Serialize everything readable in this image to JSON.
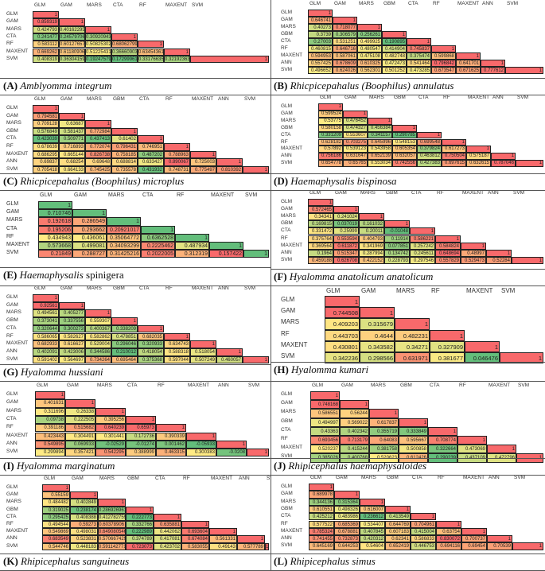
{
  "chart_data": [
    {
      "type": "heatmap",
      "panel": "A",
      "title": "Amblyomma integrum",
      "title_suffix": "",
      "labels": [
        "GLM",
        "GAM",
        "MARS",
        "CTA",
        "RF",
        "MAXENT",
        "SVM"
      ],
      "scale": "red-high",
      "values": [
        [
          "1"
        ],
        [
          "0.859319",
          "1"
        ],
        [
          "0.424793",
          "0.401622952",
          "1"
        ],
        [
          "0.241477",
          "0.245797067",
          "0.309209437",
          "1"
        ],
        [
          "0.583112",
          "0.601276579",
          "0.508253024",
          "0.680627991",
          "1"
        ],
        [
          "0.669262",
          "0.611809062",
          "0.512254319",
          "0.366609031",
          "0.634543617",
          "1"
        ],
        [
          "0.408319",
          "0.363041597",
          "0.192475794",
          "0.172999613",
          "0.331766358",
          "0.32192363",
          "1"
        ]
      ]
    },
    {
      "type": "heatmap",
      "panel": "B",
      "title": "Rhicpicepahalus (Boophilus) annulatus",
      "title_suffix": "",
      "labels": [
        "GLM",
        "GAM",
        "MARS",
        "GBM",
        "CTA",
        "RF",
        "MAXENT",
        "ANN",
        "SVM"
      ],
      "scale": "red-high",
      "values": [
        [
          "1"
        ],
        [
          "0.646741",
          "1"
        ],
        [
          "0.40273",
          "0.718077",
          "1"
        ],
        [
          "0.3739",
          "0.306579",
          "0.256261",
          "1"
        ],
        [
          "0.27003",
          "0.531251",
          "0.499925",
          "0.190895",
          "1"
        ],
        [
          "0.460815",
          "0.646716",
          "0.480547",
          "0.414904",
          "0.745837",
          "1"
        ],
        [
          "0.594953",
          "0.587061",
          "0.475108",
          "0.482748",
          "0.375474",
          "0.599868",
          "1"
        ],
        [
          "0.557425",
          "0.678609",
          "0.610325",
          "0.472473",
          "0.541464",
          "0.796842",
          "0.641701",
          "1"
        ],
        [
          "0.496652",
          "0.624026",
          "0.562301",
          "0.501252",
          "0.473285",
          "0.673547",
          "0.671625",
          "0.777612",
          "1"
        ]
      ]
    },
    {
      "type": "heatmap",
      "panel": "C",
      "title": "Rhicpicepahalus (Boophilus) microplus",
      "title_suffix": "",
      "labels": [
        "GLM",
        "GAM",
        "MARS",
        "GBM",
        "CTA",
        "RF",
        "MAXENT",
        "ANN",
        "SVM"
      ],
      "scale": "red-high",
      "values": [
        [
          "1"
        ],
        [
          "0.794581",
          "1"
        ],
        [
          "0.709128",
          "0.63687",
          "1"
        ],
        [
          "0.576849",
          "0.581437",
          "0.772984",
          "1"
        ],
        [
          "0.423039",
          "0.509771",
          "0.437413",
          "0.61402",
          "1"
        ],
        [
          "0.678639",
          "0.716893",
          "0.772074",
          "0.796431",
          "0.746951",
          "1"
        ],
        [
          "0.686295",
          "0.665144",
          "0.826738",
          "0.758185",
          "0.487202",
          "0.788963",
          "1"
        ],
        [
          "0.69837",
          "0.68254",
          "0.69648",
          "0.688814",
          "0.633427",
          "0.890067",
          "0.725003",
          "1"
        ],
        [
          "0.705418",
          "0.664133",
          "0.745425",
          "0.735578",
          "0.431932",
          "0.748731",
          "0.775497",
          "0.810392",
          "1"
        ]
      ]
    },
    {
      "type": "heatmap",
      "panel": "D",
      "title": "Haemaphysalis bispinosa",
      "title_suffix": "",
      "labels": [
        "GLM",
        "GAM",
        "MARS",
        "GBM",
        "CTA",
        "RF",
        "MAXENT",
        "ANN",
        "SVM"
      ],
      "scale": "red-high",
      "values": [
        [
          "1"
        ],
        [
          "0.599524",
          "1"
        ],
        [
          "0.53775",
          "0.476452",
          "1"
        ],
        [
          "0.580158",
          "0.474327",
          "0.456384",
          "1"
        ],
        [
          "0.331209",
          "0.553607",
          "0.341157",
          "0.290785",
          "1"
        ],
        [
          "0.628182",
          "0.703275",
          "0.645996",
          "0.548153",
          "0.699548",
          "1"
        ],
        [
          "0.57892",
          "0.539123",
          "0.543958",
          "0.605354",
          "0.379824",
          "0.617273",
          "1"
        ],
        [
          "0.756186",
          "0.631647",
          "0.652139",
          "0.632057",
          "0.463812",
          "0.750504",
          "0.575187",
          "1"
        ],
        [
          "0.654778",
          "0.65765",
          "0.553034",
          "0.742556",
          "0.427383",
          "0.697615",
          "0.632615",
          "0.787046",
          "1"
        ]
      ]
    },
    {
      "type": "heatmap",
      "panel": "E",
      "title": "Haemaphysalis",
      "title_suffix": " spinigera",
      "labels": [
        "GLM",
        "GAM",
        "MARS",
        "CTA",
        "RF",
        "MAXENT",
        "SVM"
      ],
      "scale": "green-high",
      "values": [
        [
          "1"
        ],
        [
          "0.710746",
          "1"
        ],
        [
          "0.192618",
          "0.286549",
          "1"
        ],
        [
          "0.195206",
          "0.293662",
          "0.20921017",
          "1"
        ],
        [
          "0.434943",
          "0.436061",
          "0.35064772",
          "0.6362528",
          "1"
        ],
        [
          "0.573668",
          "0.499081",
          "0.34093299",
          "0.2225462",
          "0.487934",
          "1"
        ],
        [
          "0.21849",
          "0.288727",
          "0.31425216",
          "0.2022005",
          "0.312319",
          "0.157422",
          "1"
        ]
      ]
    },
    {
      "type": "heatmap",
      "panel": "F",
      "title": "Hyalomma anatolicum anatolicum",
      "title_suffix": "",
      "labels": [
        "GLM",
        "GAM",
        "MARS",
        "GBM",
        "CTA",
        "RF",
        "MAXENT",
        "ANN",
        "SVM"
      ],
      "scale": "red-high",
      "values": [
        [
          "1"
        ],
        [
          "0.572465",
          "1"
        ],
        [
          "0.34341",
          "0.241024",
          "1"
        ],
        [
          "0.169815",
          "0.037019",
          "0.161032",
          "1"
        ],
        [
          "0.331472",
          "0.25999",
          "0.20011",
          "-0.01048",
          "1"
        ],
        [
          "0.375764",
          "0.553594",
          "0.404793",
          "0.11914",
          "0.586221",
          "1"
        ],
        [
          "0.369564",
          "0.611872",
          "0.341969",
          "0.077851",
          "0.257242",
          "0.584824",
          "1"
        ],
        [
          "0.1964",
          "0.515347",
          "0.287994",
          "0.134742",
          "0.245611",
          "0.648694",
          "0.48997",
          "1"
        ],
        [
          "0.459188",
          "0.626708",
          "0.422152",
          "0.228793",
          "0.297546",
          "0.557829",
          "0.529473",
          "0.52284",
          "1"
        ]
      ]
    },
    {
      "type": "heatmap",
      "panel": "G",
      "title": "Hyalomma hussiani",
      "title_suffix": "",
      "labels": [
        "GLM",
        "GAM",
        "MARS",
        "GBM",
        "CTA",
        "RF",
        "MAXENT",
        "ANN",
        "SVM"
      ],
      "scale": "red-high",
      "values": [
        [
          "1"
        ],
        [
          "0.92561",
          "1"
        ],
        [
          "0.494561",
          "0.405277",
          "1"
        ],
        [
          "0.373041",
          "0.337556",
          "0.559307",
          "1"
        ],
        [
          "0.320644",
          "0.300273",
          "0.400367",
          "0.338209",
          "1"
        ],
        [
          "0.586065",
          "0.582627",
          "0.582862",
          "0.478851",
          "0.682035",
          "1"
        ],
        [
          "0.682933",
          "0.616627",
          "0.529004",
          "0.296046",
          "0.320933",
          "0.634743",
          "1"
        ],
        [
          "0.402091",
          "0.423006",
          "0.344586",
          "0.210012",
          "0.418054",
          "0.588318",
          "0.518054",
          "1"
        ],
        [
          "0.591402",
          "0.564697",
          "0.734264",
          "0.695464",
          "0.375368",
          "0.597044",
          "0.507249",
          "0.460057",
          "1"
        ]
      ]
    },
    {
      "type": "heatmap",
      "panel": "H",
      "title": "Hyalomma kumari",
      "title_suffix": "",
      "labels": [
        "GLM",
        "GAM",
        "MARS",
        "RF",
        "MAXENT",
        "SVM"
      ],
      "scale": "red-high",
      "values": [
        [
          "1"
        ],
        [
          "0.744508",
          "1"
        ],
        [
          "0.409203",
          "0.315679",
          "1"
        ],
        [
          "0.443703",
          "0.4644",
          "0.482231",
          "1"
        ],
        [
          "0.430801",
          "0.343582",
          "0.34271",
          "0.327909",
          "1"
        ],
        [
          "0.342236",
          "0.298566",
          "0.631971",
          "0.381677",
          "0.046476",
          "1"
        ]
      ]
    },
    {
      "type": "heatmap",
      "panel": "I",
      "title": "Hyalomma marginatum",
      "title_suffix": "",
      "labels": [
        "GLM",
        "GAM",
        "MARS",
        "CTA",
        "RF",
        "MAXENT",
        "ANN",
        "SVM"
      ],
      "scale": "red-high",
      "values": [
        [
          "1"
        ],
        [
          "0.401631",
          "1"
        ],
        [
          "0.311696",
          "0.26338",
          "1"
        ],
        [
          "0.09738",
          "0.222505",
          "0.395256",
          "1"
        ],
        [
          "0.391186",
          "0.515682",
          "0.640239",
          "0.65973",
          "1"
        ],
        [
          "0.423443",
          "0.304491",
          "0.301441",
          "0.172736",
          "0.390339",
          "1"
        ],
        [
          "0.549895",
          "0.069933",
          "-0.02529",
          "-0.01274",
          "0.001462",
          "-0.05933",
          "1"
        ],
        [
          "0.299894",
          "0.357421",
          "0.542295",
          "0.388999",
          "0.463315",
          "0.300383",
          "-0.0208",
          "1"
        ]
      ]
    },
    {
      "type": "heatmap",
      "panel": "J",
      "title": "Rhipicephalus haemaphysaloides",
      "title_suffix": "",
      "labels": [
        "GLM",
        "GAM",
        "MARS",
        "GBM",
        "CTA",
        "RF",
        "MAXENT",
        "SVM"
      ],
      "scale": "red-high",
      "values": [
        [
          "1"
        ],
        [
          "0.748168",
          "1"
        ],
        [
          "0.586551",
          "0.56244",
          "1"
        ],
        [
          "0.494997",
          "0.569022",
          "0.617837",
          "1"
        ],
        [
          "0.43363",
          "0.402342",
          "0.355719",
          "0.333849",
          "1"
        ],
        [
          "0.693456",
          "0.713179",
          "0.64083",
          "0.595667",
          "0.708774",
          "1"
        ],
        [
          "0.520237",
          "0.415244",
          "0.381758",
          "0.500858",
          "0.322664",
          "0.473069",
          "1"
        ],
        [
          "0.385026",
          "0.400768",
          "0.520623",
          "0.612426",
          "0.290239",
          "0.437109",
          "0.472796",
          "1"
        ]
      ]
    },
    {
      "type": "heatmap",
      "panel": "K",
      "title": "Rhipicephalus sanguineus",
      "title_suffix": "",
      "labels": [
        "GLM",
        "GAM",
        "MARS",
        "GBM",
        "CTA",
        "RF",
        "MAXENT",
        "ANN",
        "SVM"
      ],
      "scale": "red-high",
      "values": [
        [
          "1"
        ],
        [
          "0.55159",
          "1"
        ],
        [
          "0.484482",
          "0.402849",
          "1"
        ],
        [
          "0.319025",
          "0.238174",
          "0.286926961",
          "1"
        ],
        [
          "0.295425",
          "0.408388",
          "0.412782759",
          "0.222773",
          "1"
        ],
        [
          "0.494544",
          "0.59273",
          "0.60378906",
          "0.332766",
          "0.635881",
          "1"
        ],
        [
          "0.549869",
          "0.498031",
          "0.649080546",
          "0.222989",
          "0.442062",
          "0.693604",
          "1"
        ],
        [
          "0.683549",
          "0.523831",
          "0.570667429",
          "0.374789",
          "0.417081",
          "0.674084",
          "0.561331",
          "1"
        ],
        [
          "0.544746",
          "0.448183",
          "0.591142771",
          "0.723073",
          "0.423702",
          "0.583055",
          "0.49143",
          "0.577789",
          "1"
        ]
      ]
    },
    {
      "type": "heatmap",
      "panel": "L",
      "title": "Rhipicephalus simus",
      "title_suffix": "",
      "labels": [
        "GLM",
        "GAM",
        "MARS",
        "GBM",
        "CTA",
        "RF",
        "MAXENT",
        "ANN",
        "SVM"
      ],
      "scale": "red-high",
      "values": [
        [
          "1"
        ],
        [
          "0.689978",
          "1"
        ],
        [
          "0.344136",
          "0.315364",
          "1"
        ],
        [
          "0.610551",
          "0.498326",
          "0.616007",
          "1"
        ],
        [
          "0.425212",
          "0.483986",
          "0.236612",
          "0.413549",
          "1"
        ],
        [
          "0.577522",
          "0.685369",
          "0.534407",
          "0.644769",
          "0.704961",
          "1"
        ],
        [
          "0.785324",
          "0.678881",
          "0.407845",
          "0.607183",
          "0.415004",
          "0.63754",
          "1"
        ],
        [
          "0.741455",
          "0.732873",
          "0.420312",
          "0.62341",
          "0.586833",
          "0.830072",
          "0.700737",
          "1"
        ],
        [
          "0.645169",
          "0.644253",
          "0.54604",
          "0.652419",
          "0.446753",
          "0.694116",
          "0.69454",
          "0.70539",
          "1"
        ]
      ]
    }
  ],
  "colors": {
    "high": "#f8696b",
    "mid": "#ffeb84",
    "low": "#63be7b"
  }
}
